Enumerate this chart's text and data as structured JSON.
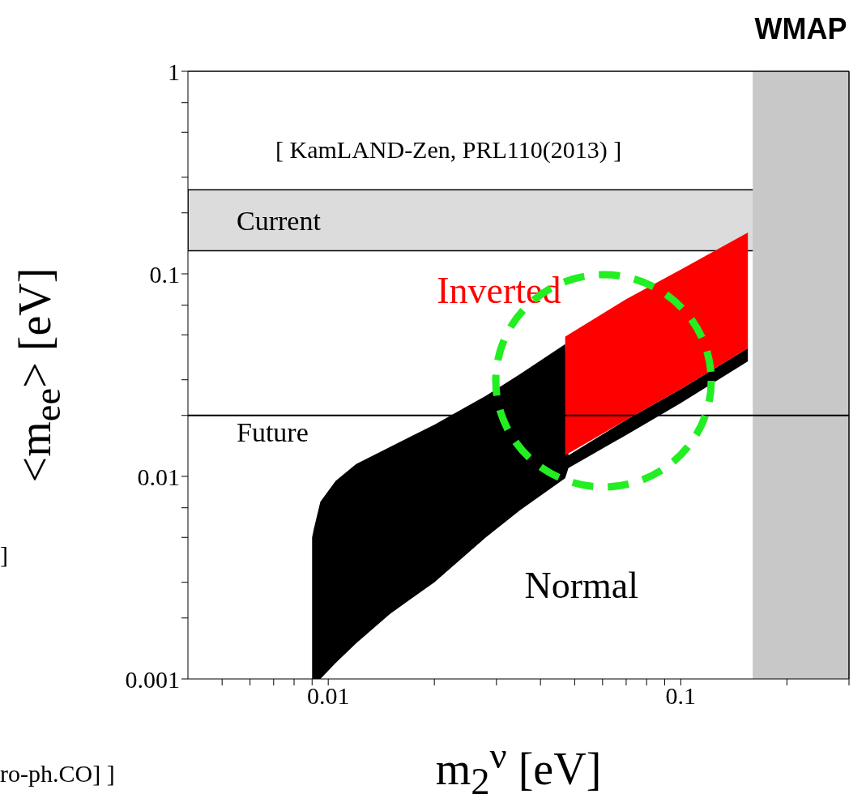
{
  "chart_data": {
    "type": "area",
    "xlabel": "m$_{2}$$^{ν}$ [eV]",
    "ylabel": "<m$_{ee}$> [eV]",
    "log": "xy",
    "xlim": [
      0.004,
      0.3
    ],
    "ylim": [
      0.001,
      1
    ],
    "xticks": [
      {
        "value": 0.005,
        "label": null
      },
      {
        "value": 0.006,
        "label": null
      },
      {
        "value": 0.007,
        "label": null
      },
      {
        "value": 0.008,
        "label": null
      },
      {
        "value": 0.009,
        "label": null
      },
      0.01,
      {
        "value": 0.02,
        "label": null
      },
      {
        "value": 0.03,
        "label": null
      },
      {
        "value": 0.04,
        "label": null
      },
      {
        "value": 0.05,
        "label": null
      },
      {
        "value": 0.06,
        "label": null
      },
      {
        "value": 0.07,
        "label": null
      },
      {
        "value": 0.08,
        "label": null
      },
      {
        "value": 0.09,
        "label": null
      },
      0.1,
      {
        "value": 0.2,
        "label": null
      },
      {
        "value": 0.3,
        "label": null
      }
    ],
    "yticks": [
      0.001,
      {
        "value": 0.002,
        "label": null
      },
      {
        "value": 0.003,
        "label": null
      },
      {
        "value": 0.005,
        "label": null
      },
      {
        "value": 0.007,
        "label": null
      },
      0.01,
      {
        "value": 0.02,
        "label": null
      },
      {
        "value": 0.03,
        "label": null
      },
      {
        "value": 0.05,
        "label": null
      },
      {
        "value": 0.07,
        "label": null
      },
      0.1,
      {
        "value": 0.2,
        "label": null
      },
      {
        "value": 0.3,
        "label": null
      },
      {
        "value": 0.5,
        "label": null
      },
      {
        "value": 0.7,
        "label": null
      },
      1
    ],
    "series": [
      {
        "name": "Normal",
        "color": "#000000",
        "x": [
          0.009,
          0.0091,
          0.0095,
          0.0105,
          0.012,
          0.015,
          0.02,
          0.028,
          0.035,
          0.047,
          0.048,
          0.07,
          0.1,
          0.155
        ],
        "values": [
          null,
          null,
          null,
          null,
          null,
          null,
          null,
          null,
          null,
          null,
          null,
          null,
          null,
          null
        ],
        "upper": [
          0.005,
          0.0055,
          0.0075,
          0.0095,
          0.0115,
          0.014,
          0.018,
          0.025,
          0.032,
          0.045,
          0.0127,
          0.019,
          0.027,
          0.043
        ],
        "lower": [
          0.001,
          0.001,
          0.001,
          0.0012,
          0.0015,
          0.0021,
          0.003,
          0.005,
          0.0068,
          0.0098,
          0.011,
          0.016,
          0.023,
          0.037
        ]
      },
      {
        "name": "Inverted",
        "color": "#ff0000",
        "x": [
          0.047,
          0.07,
          0.1,
          0.155
        ],
        "values": [
          null,
          null,
          null,
          null
        ],
        "upper": [
          0.049,
          0.075,
          0.105,
          0.16
        ],
        "lower": [
          0.0127,
          0.019,
          0.027,
          0.043
        ]
      }
    ],
    "bands": [
      {
        "axis": "y",
        "from": 0.13,
        "to": 0.26,
        "label": "Current",
        "color": "#dcdcdc"
      },
      {
        "axis": "x",
        "from": 0.16,
        "to": 0.3,
        "label": "WMAP",
        "color": "#c8c8c8"
      }
    ],
    "ref_lines": [
      {
        "axis": "y",
        "value": 0.02,
        "label": "Future",
        "color": "#000000"
      }
    ],
    "annotations": [
      "[ KamLAND-Zen, PRL110(2013) ]",
      "]",
      "ro-ph.CO] ]"
    ]
  }
}
